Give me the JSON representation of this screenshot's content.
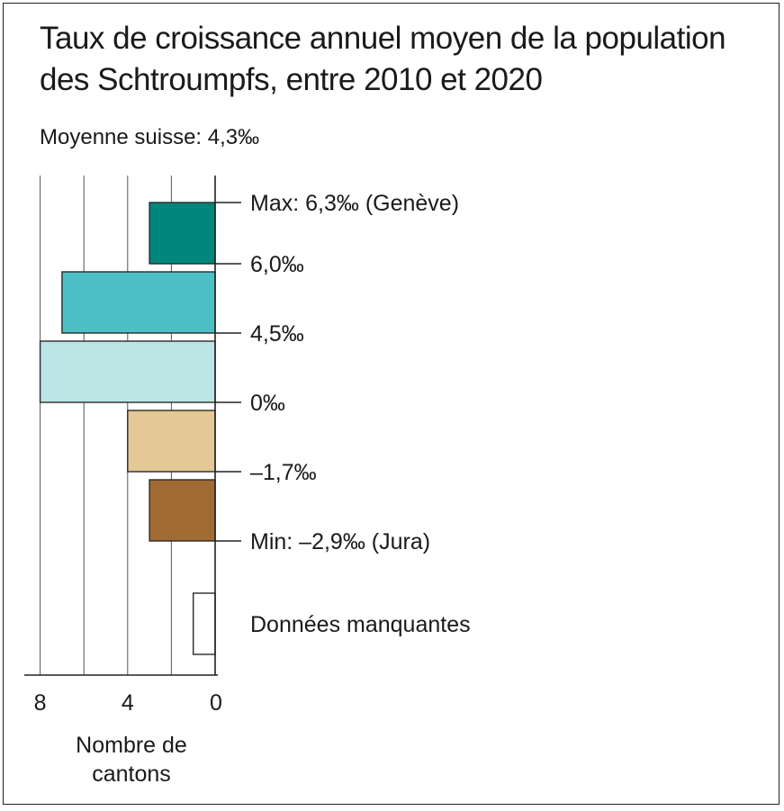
{
  "chart_data": {
    "type": "bar",
    "orientation": "horizontal",
    "title": "Taux de croissance annuel moyen de la population des Schtroumpfs, entre 2010 et 2020",
    "subtitle": "Moyenne suisse: 4,3‰",
    "xlabel": "Nombre de cantons",
    "xlim": [
      8,
      0
    ],
    "x_ticks": [
      "8",
      "4",
      "0"
    ],
    "x_tick_values": [
      8,
      4,
      0
    ],
    "grid": true,
    "bin_boundary_labels": [
      "Max: 6,3‰ (Genève)",
      "6,0‰",
      "4,5‰",
      "0‰",
      "–1,7‰",
      "Min: –2,9‰ (Jura)"
    ],
    "categories": [
      "6,0‰ – 6,3‰",
      "4,5‰ – 6,0‰",
      "0‰ – 4,5‰",
      "–1,7‰ – 0‰",
      "–2,9‰ – –1,7‰",
      "Données manquantes"
    ],
    "values": [
      3,
      7,
      8,
      4,
      3,
      1
    ],
    "colors": [
      "#00877c",
      "#4cc0c4",
      "#bce5e6",
      "#e4c896",
      "#a06c33",
      "#ffffff"
    ],
    "missing_label": "Données manquantes"
  }
}
